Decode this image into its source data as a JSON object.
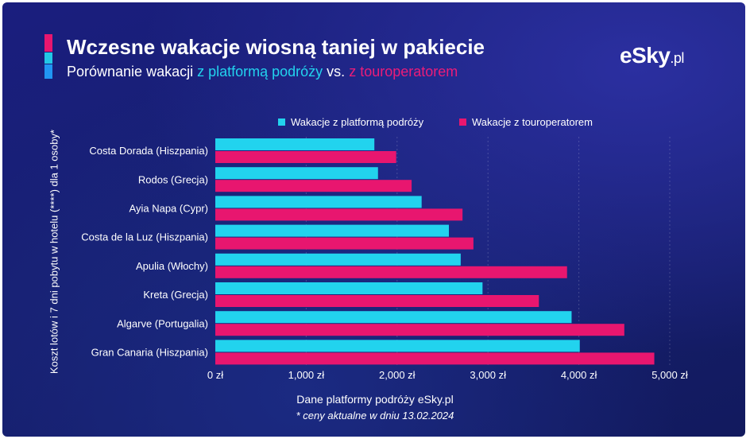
{
  "header": {
    "title": "Wczesne wakacje wiosną taniej w pakiecie",
    "subtitle_a": "Porównanie wakacji ",
    "subtitle_b": "z platformą podróży",
    "subtitle_c": " vs. ",
    "subtitle_d": "z touroperatorem"
  },
  "logo": {
    "main": "eSky",
    "suffix": ".pl"
  },
  "colors": {
    "platform": "#22d3ee",
    "touroperator": "#e8166f"
  },
  "footer": {
    "source": "Dane platformy podróży eSky.pl",
    "note": "* ceny aktualne w dniu 13.02.2024"
  },
  "chart_data": {
    "type": "bar",
    "orientation": "horizontal",
    "ylabel": "Koszt lotów i 7 dni pobytu w hotelu (****) dla 1 osoby*",
    "xlabel": "",
    "categories": [
      "Costa Dorada (Hiszpania)",
      "Rodos (Grecja)",
      "Ayia Napa (Cypr)",
      "Costa de la Luz (Hiszpania)",
      "Apulia (Włochy)",
      "Kreta (Grecja)",
      "Algarve (Portugalia)",
      "Gran Canaria (Hiszpania)"
    ],
    "series": [
      {
        "name": "Wakacje z platformą podróży",
        "values": [
          1750,
          1790,
          2270,
          2570,
          2700,
          2940,
          3920,
          4010
        ]
      },
      {
        "name": "Wakacje z touroperatorem",
        "values": [
          1990,
          2160,
          2720,
          2840,
          3870,
          3560,
          4500,
          4830
        ]
      }
    ],
    "xlim": [
      0,
      5000
    ],
    "xticks": [
      0,
      1000,
      2000,
      3000,
      4000,
      5000
    ],
    "xtick_labels": [
      "0 zł",
      "1,000 zł",
      "2,000 zł",
      "3,000 zł",
      "4,000 zł",
      "5,000 zł"
    ],
    "grid": true,
    "legend_position": "top"
  }
}
